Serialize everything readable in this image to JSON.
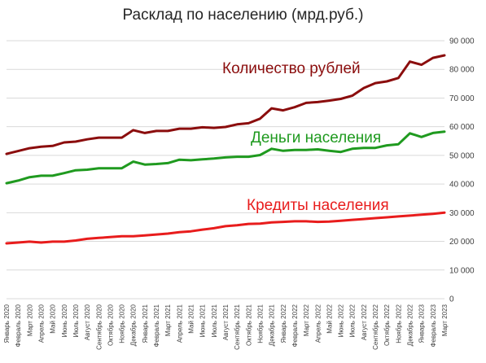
{
  "chart_data": {
    "type": "line",
    "title": "Расклад по населению (мрд.руб.)",
    "xlabel": "",
    "ylabel": "",
    "ylim": [
      0,
      90000
    ],
    "yticks": [
      "0",
      "10 000",
      "20 000",
      "30 000",
      "40 000",
      "50 000",
      "60 000",
      "70 000",
      "80 000",
      "90 000"
    ],
    "y_axis_position": "right",
    "grid": true,
    "legend": "inline labels",
    "x": [
      "Январь 2020",
      "Февраль 2020",
      "Март 2020",
      "Апрель 2020",
      "Май 2020",
      "Июнь 2020",
      "Июль 2020",
      "Август 2020",
      "Сентябрь 2020",
      "Октябрь 2020",
      "Ноябрь 2020",
      "Декабрь 2020",
      "Январь 2021",
      "Февраль 2021",
      "Март 2021",
      "Апрель 2021",
      "Май 2021",
      "Июнь 2021",
      "Июль 2021",
      "Август 2021",
      "Сентябрь 2021",
      "Октябрь 2021",
      "Ноябрь 2021",
      "Декабрь 2021",
      "Январь 2022",
      "Февраль 2022",
      "Март 2022",
      "Апрель 2022",
      "Май 2022",
      "Июнь 2022",
      "Июль 2022",
      "Август 2022",
      "Сентябрь 2022",
      "Октябрь 2022",
      "Ноябрь 2022",
      "Декабрь 2022",
      "Январь 2023",
      "Февраль 2023",
      "Март 2023"
    ],
    "series": [
      {
        "name": "Количество рублей",
        "color": "#8b0d0d",
        "values": [
          50500,
          51500,
          52500,
          53000,
          53300,
          54500,
          54800,
          55600,
          56200,
          56200,
          56200,
          58800,
          57800,
          58500,
          58500,
          59300,
          59300,
          59800,
          59600,
          59900,
          60800,
          61200,
          62800,
          66400,
          65700,
          66800,
          68300,
          68600,
          69100,
          69700,
          70800,
          73500,
          75200,
          75800,
          77000,
          82700,
          81600,
          84000,
          84900
        ]
      },
      {
        "name": "Деньги населения",
        "color": "#1f9a1f",
        "values": [
          40300,
          41200,
          42400,
          42900,
          42900,
          43800,
          44800,
          45000,
          45500,
          45500,
          45500,
          47800,
          46800,
          47000,
          47300,
          48500,
          48300,
          48600,
          48900,
          49300,
          49500,
          49500,
          50100,
          52300,
          51600,
          51900,
          51900,
          52100,
          51600,
          51200,
          52300,
          52600,
          52600,
          53500,
          53900,
          57700,
          56400,
          57800,
          58300
        ]
      },
      {
        "name": "Кредиты населения",
        "color": "#e81c1c",
        "values": [
          19300,
          19600,
          19900,
          19600,
          19900,
          19900,
          20300,
          20900,
          21200,
          21500,
          21800,
          21800,
          22100,
          22400,
          22700,
          23200,
          23500,
          24100,
          24600,
          25300,
          25600,
          26100,
          26200,
          26600,
          26800,
          27000,
          27000,
          26800,
          26900,
          27200,
          27500,
          27800,
          28100,
          28400,
          28700,
          29000,
          29300,
          29600,
          30000
        ]
      }
    ]
  }
}
